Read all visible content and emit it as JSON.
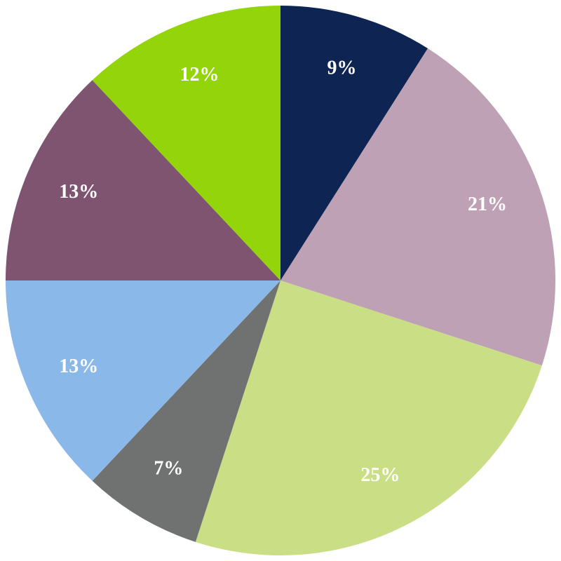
{
  "chart_data": {
    "type": "pie",
    "values": [
      9,
      21,
      25,
      7,
      13,
      13,
      12
    ],
    "value_labels": [
      "9%",
      "21%",
      "25%",
      "7%",
      "13%",
      "13%",
      "12%"
    ],
    "colors": [
      "#0e2554",
      "#bea1b5",
      "#c9de85",
      "#707271",
      "#8ab8e8",
      "#7e5470",
      "#94d40a"
    ]
  }
}
